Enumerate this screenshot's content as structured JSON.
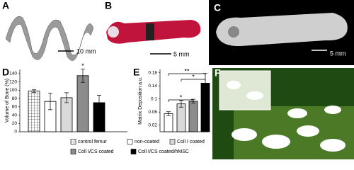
{
  "panels": {
    "A": {
      "label": "A",
      "scale": "10 mm"
    },
    "B": {
      "label": "B",
      "scale": "5 mm"
    },
    "C": {
      "label": "C",
      "scale": "5 mm"
    },
    "F": {
      "label": "F"
    }
  },
  "chart_data": [
    {
      "type": "bar",
      "panel": "D",
      "y_label": "Volume of Bone (%)",
      "categories": [
        null
      ],
      "series": [
        {
          "name": "control femur",
          "color": "#ffffff",
          "pattern": "grid",
          "values": [
            98
          ],
          "errors": [
            3
          ]
        },
        {
          "name": "non-coated",
          "color": "#ffffff",
          "values": [
            73
          ],
          "errors": [
            20
          ]
        },
        {
          "name": "Coll I coated",
          "color": "#d9d9d9",
          "values": [
            82
          ],
          "errors": [
            12
          ]
        },
        {
          "name": "Coll I/CS coated",
          "color": "#8c8c8c",
          "values": [
            135
          ],
          "errors": [
            16
          ]
        },
        {
          "name": "Coll I/CS coated/hMSC",
          "color": "#000000",
          "values": [
            70
          ],
          "errors": [
            18
          ]
        }
      ],
      "ylim": [
        0,
        150
      ],
      "yticks": [
        0,
        20,
        40,
        60,
        80,
        100,
        120,
        140
      ],
      "annotations": [
        "*"
      ]
    },
    {
      "type": "bar",
      "panel": "E",
      "y_label": "Matrix Deposition a.u.",
      "categories": [
        null
      ],
      "series": [
        {
          "color": "#ffffff",
          "values": [
            0.055
          ],
          "errors": [
            0.006
          ]
        },
        {
          "color": "#d9d9d9",
          "values": [
            0.085
          ],
          "errors": [
            0.01
          ]
        },
        {
          "color": "#8c8c8c",
          "values": [
            0.093
          ],
          "errors": [
            0.006
          ]
        },
        {
          "color": "#000000",
          "values": [
            0.148
          ],
          "errors": [
            0.03
          ]
        }
      ],
      "ylim": [
        0,
        0.19
      ],
      "yticks": [
        0.02,
        0.06,
        0.1,
        0.14,
        0.18
      ],
      "annotations": [
        "**",
        "*",
        "*"
      ]
    }
  ]
}
